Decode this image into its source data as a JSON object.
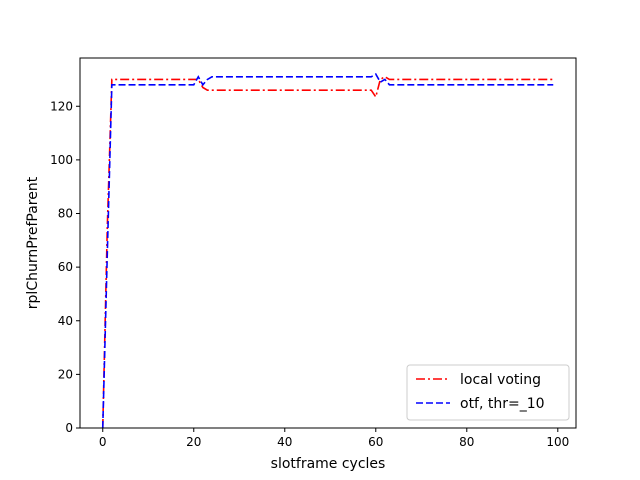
{
  "chart_data": {
    "type": "line",
    "title": "",
    "xlabel": "slotframe cycles",
    "ylabel": "rplChurnPrefParent",
    "xlim": [
      -5,
      104
    ],
    "ylim": [
      0,
      138
    ],
    "xticks": [
      0,
      20,
      40,
      60,
      80,
      100
    ],
    "yticks": [
      0,
      20,
      40,
      60,
      80,
      100,
      120
    ],
    "grid": false,
    "legend_position": "lower-right",
    "series": [
      {
        "name": "local voting",
        "color": "#ff0000",
        "style": "dashdot",
        "x": [
          0,
          1,
          2,
          20,
          21,
          22,
          23,
          59,
          60,
          61,
          62,
          63,
          99
        ],
        "y": [
          0,
          75,
          130,
          130,
          130,
          127,
          126,
          126,
          123.5,
          130,
          131,
          130,
          130
        ]
      },
      {
        "name": "otf, thr=_10",
        "color": "#0000ff",
        "style": "dashed",
        "x": [
          0,
          1,
          2,
          20,
          21,
          22,
          23,
          24,
          59,
          60,
          61,
          62,
          63,
          99
        ],
        "y": [
          0,
          65,
          128,
          128,
          131,
          128,
          130,
          131,
          131,
          132,
          129,
          130,
          128,
          128
        ]
      }
    ]
  }
}
